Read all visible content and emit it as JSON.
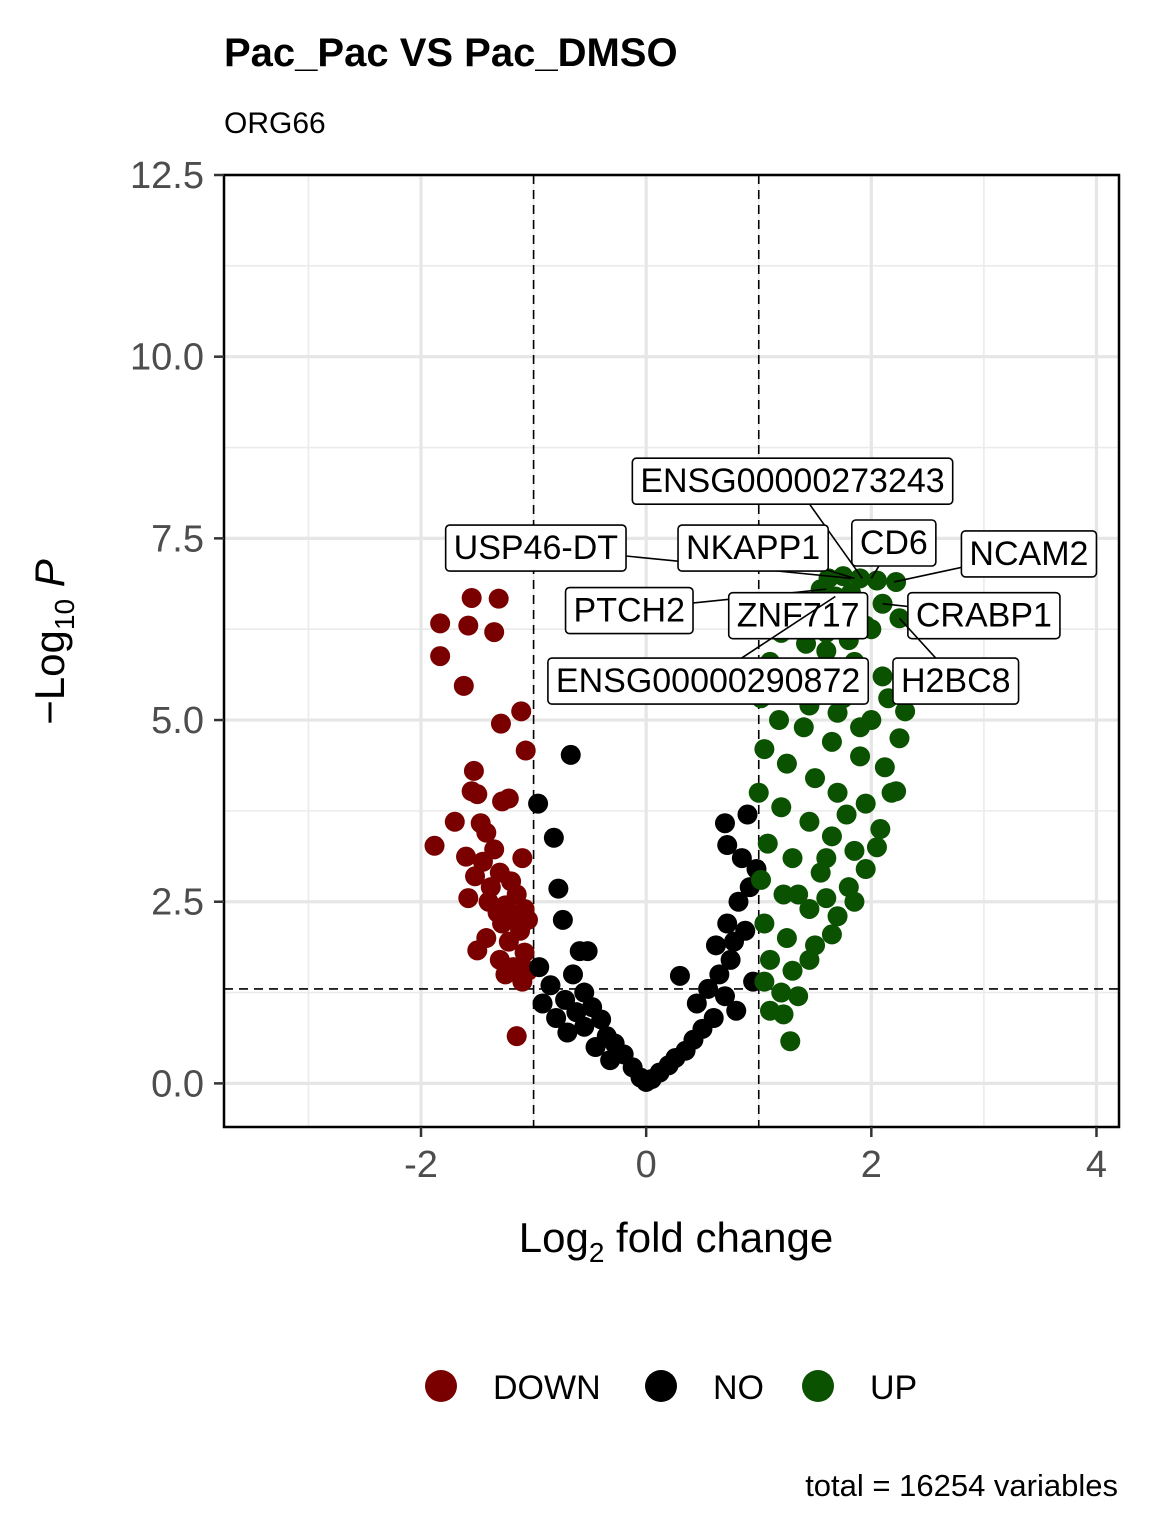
{
  "chart_data": {
    "type": "scatter",
    "title": "Pac_Pac VS Pac_DMSO",
    "subtitle": "ORG66",
    "xlabel": "Log2 fold change",
    "ylabel": "-Log10 P",
    "xlim": [
      -3.75,
      4.2
    ],
    "ylim": [
      -0.6,
      12.5
    ],
    "x_ticks": [
      "-2",
      "0",
      "2",
      "4"
    ],
    "y_ticks": [
      "0.0",
      "2.5",
      "5.0",
      "7.5",
      "10.0",
      "12.5"
    ],
    "grid": true,
    "legend_position": "bottom",
    "caption": "total = 16254 variables",
    "fc_cutoff": [
      -1,
      1
    ],
    "p_cutoff_neglog10": 1.3,
    "colors": {
      "DOWN": "#7a0000",
      "NO": "#000000",
      "UP": "#0b5200"
    },
    "legend": [
      {
        "label": "DOWN",
        "color": "#7a0000"
      },
      {
        "label": "NO",
        "color": "#000000"
      },
      {
        "label": "UP",
        "color": "#0b5200"
      }
    ],
    "series": [
      {
        "name": "DOWN",
        "points": [
          [
            -1.55,
            6.68
          ],
          [
            -1.31,
            6.67
          ],
          [
            -1.83,
            6.33
          ],
          [
            -1.58,
            6.3
          ],
          [
            -1.35,
            6.21
          ],
          [
            -1.83,
            5.88
          ],
          [
            -1.62,
            5.47
          ],
          [
            -1.11,
            5.12
          ],
          [
            -1.29,
            4.95
          ],
          [
            -1.07,
            4.58
          ],
          [
            -1.53,
            4.3
          ],
          [
            -1.55,
            4.02
          ],
          [
            -1.5,
            3.98
          ],
          [
            -1.22,
            3.92
          ],
          [
            -1.28,
            3.88
          ],
          [
            -1.7,
            3.6
          ],
          [
            -1.47,
            3.58
          ],
          [
            -1.42,
            3.45
          ],
          [
            -1.88,
            3.27
          ],
          [
            -1.35,
            3.22
          ],
          [
            -1.1,
            3.1
          ],
          [
            -1.6,
            3.12
          ],
          [
            -1.45,
            3.05
          ],
          [
            -1.3,
            2.9
          ],
          [
            -1.52,
            2.85
          ],
          [
            -1.2,
            2.78
          ],
          [
            -1.38,
            2.7
          ],
          [
            -1.15,
            2.6
          ],
          [
            -1.58,
            2.55
          ],
          [
            -1.4,
            2.5
          ],
          [
            -1.25,
            2.45
          ],
          [
            -1.08,
            2.4
          ],
          [
            -1.32,
            2.35
          ],
          [
            -1.18,
            2.3
          ],
          [
            -1.05,
            2.25
          ],
          [
            -1.28,
            2.2
          ],
          [
            -1.12,
            2.1
          ],
          [
            -1.42,
            2.0
          ],
          [
            -1.22,
            1.95
          ],
          [
            -1.5,
            1.83
          ],
          [
            -1.08,
            1.8
          ],
          [
            -1.3,
            1.7
          ],
          [
            -1.18,
            1.6
          ],
          [
            -1.05,
            1.55
          ],
          [
            -1.25,
            1.5
          ],
          [
            -1.1,
            1.4
          ],
          [
            -1.15,
            0.65
          ]
        ]
      },
      {
        "name": "NO",
        "points": [
          [
            -0.67,
            4.52
          ],
          [
            -0.96,
            3.85
          ],
          [
            -0.82,
            3.38
          ],
          [
            -0.78,
            2.68
          ],
          [
            -0.74,
            2.25
          ],
          [
            -0.52,
            1.82
          ],
          [
            -0.59,
            1.82
          ],
          [
            -0.95,
            1.6
          ],
          [
            -0.65,
            1.5
          ],
          [
            -0.85,
            1.35
          ],
          [
            -0.55,
            1.25
          ],
          [
            -0.72,
            1.15
          ],
          [
            -0.92,
            1.1
          ],
          [
            -0.48,
            1.05
          ],
          [
            -0.62,
            0.98
          ],
          [
            -0.8,
            0.9
          ],
          [
            -0.4,
            0.88
          ],
          [
            -0.55,
            0.78
          ],
          [
            -0.7,
            0.7
          ],
          [
            -0.35,
            0.65
          ],
          [
            -0.28,
            0.55
          ],
          [
            -0.45,
            0.5
          ],
          [
            -0.2,
            0.4
          ],
          [
            -0.32,
            0.32
          ],
          [
            -0.12,
            0.22
          ],
          [
            -0.05,
            0.08
          ],
          [
            0.0,
            0.02
          ],
          [
            0.05,
            0.06
          ],
          [
            0.12,
            0.15
          ],
          [
            0.2,
            0.25
          ],
          [
            0.26,
            0.35
          ],
          [
            0.35,
            0.45
          ],
          [
            0.3,
            1.48
          ],
          [
            0.42,
            0.6
          ],
          [
            0.5,
            0.75
          ],
          [
            0.45,
            1.1
          ],
          [
            0.6,
            0.9
          ],
          [
            0.55,
            1.3
          ],
          [
            0.65,
            1.5
          ],
          [
            0.7,
            1.2
          ],
          [
            0.75,
            1.7
          ],
          [
            0.62,
            1.9
          ],
          [
            0.72,
            2.2
          ],
          [
            0.78,
            1.95
          ],
          [
            0.82,
            2.5
          ],
          [
            0.88,
            2.1
          ],
          [
            0.92,
            2.7
          ],
          [
            0.85,
            3.1
          ],
          [
            0.72,
            3.28
          ],
          [
            0.7,
            3.58
          ],
          [
            0.9,
            3.7
          ],
          [
            0.95,
            1.4
          ],
          [
            0.8,
            1.0
          ],
          [
            0.98,
            2.95
          ]
        ]
      },
      {
        "name": "UP",
        "points": [
          [
            1.62,
            6.95
          ],
          [
            1.75,
            6.98
          ],
          [
            1.9,
            6.95
          ],
          [
            2.05,
            6.92
          ],
          [
            2.22,
            6.9
          ],
          [
            1.55,
            6.8
          ],
          [
            1.68,
            6.7
          ],
          [
            1.82,
            6.75
          ],
          [
            2.1,
            6.6
          ],
          [
            2.25,
            6.4
          ],
          [
            1.35,
            6.5
          ],
          [
            1.5,
            6.4
          ],
          [
            1.72,
            6.35
          ],
          [
            1.95,
            6.3
          ],
          [
            1.2,
            6.2
          ],
          [
            1.42,
            6.05
          ],
          [
            1.6,
            5.95
          ],
          [
            1.85,
            5.8
          ],
          [
            2.1,
            5.6
          ],
          [
            2.3,
            5.12
          ],
          [
            1.1,
            5.8
          ],
          [
            1.3,
            5.6
          ],
          [
            1.55,
            5.5
          ],
          [
            1.75,
            5.3
          ],
          [
            2.0,
            5.0
          ],
          [
            2.25,
            4.75
          ],
          [
            1.02,
            5.3
          ],
          [
            1.18,
            5.0
          ],
          [
            1.4,
            4.9
          ],
          [
            1.65,
            4.7
          ],
          [
            1.9,
            4.5
          ],
          [
            2.12,
            4.35
          ],
          [
            2.22,
            4.02
          ],
          [
            1.05,
            4.6
          ],
          [
            1.25,
            4.4
          ],
          [
            1.5,
            4.2
          ],
          [
            1.7,
            4.0
          ],
          [
            1.95,
            3.85
          ],
          [
            2.08,
            3.5
          ],
          [
            1.0,
            4.0
          ],
          [
            1.2,
            3.8
          ],
          [
            1.45,
            3.6
          ],
          [
            1.65,
            3.4
          ],
          [
            1.85,
            3.2
          ],
          [
            2.05,
            3.25
          ],
          [
            1.08,
            3.3
          ],
          [
            1.3,
            3.1
          ],
          [
            1.55,
            2.9
          ],
          [
            1.8,
            2.7
          ],
          [
            1.95,
            2.95
          ],
          [
            1.02,
            2.8
          ],
          [
            1.22,
            2.6
          ],
          [
            1.45,
            2.4
          ],
          [
            1.7,
            2.3
          ],
          [
            1.85,
            2.5
          ],
          [
            1.05,
            2.2
          ],
          [
            1.25,
            2.0
          ],
          [
            1.5,
            1.9
          ],
          [
            1.65,
            2.05
          ],
          [
            1.1,
            1.7
          ],
          [
            1.3,
            1.55
          ],
          [
            1.45,
            1.7
          ],
          [
            1.05,
            1.4
          ],
          [
            1.2,
            1.25
          ],
          [
            1.35,
            1.2
          ],
          [
            1.1,
            1.0
          ],
          [
            1.22,
            0.95
          ],
          [
            1.28,
            0.58
          ],
          [
            1.6,
            6.2
          ],
          [
            1.8,
            6.1
          ],
          [
            2.0,
            6.25
          ],
          [
            2.15,
            5.3
          ],
          [
            1.45,
            5.2
          ],
          [
            1.7,
            5.1
          ],
          [
            1.9,
            4.9
          ],
          [
            2.18,
            4.0
          ],
          [
            1.6,
            3.1
          ],
          [
            1.78,
            3.7
          ],
          [
            1.35,
            2.6
          ],
          [
            1.6,
            2.55
          ]
        ]
      }
    ],
    "labels": [
      {
        "text": "ENSG00000273243",
        "x": 1.92,
        "y": 6.95,
        "lx": 1.3,
        "ly": 8.3
      },
      {
        "text": "USP46-DT",
        "x": 1.82,
        "y": 6.95,
        "lx": -0.98,
        "ly": 7.38
      },
      {
        "text": "NKAPP1",
        "x": 1.85,
        "y": 6.95,
        "lx": 0.95,
        "ly": 7.38
      },
      {
        "text": "CD6",
        "x": 2.0,
        "y": 6.95,
        "lx": 2.2,
        "ly": 7.45
      },
      {
        "text": "NCAM2",
        "x": 2.2,
        "y": 6.9,
        "lx": 3.4,
        "ly": 7.3
      },
      {
        "text": "PTCH2",
        "x": 1.6,
        "y": 6.8,
        "lx": -0.15,
        "ly": 6.52
      },
      {
        "text": "ZNF717",
        "x": 1.75,
        "y": 6.75,
        "lx": 1.35,
        "ly": 6.45
      },
      {
        "text": "CRABP1",
        "x": 2.1,
        "y": 6.6,
        "lx": 3.0,
        "ly": 6.45
      },
      {
        "text": "ENSG00000290872",
        "x": 1.68,
        "y": 6.7,
        "lx": 0.55,
        "ly": 5.55
      },
      {
        "text": "H2BC8",
        "x": 2.25,
        "y": 6.4,
        "lx": 2.75,
        "ly": 5.55
      }
    ]
  }
}
